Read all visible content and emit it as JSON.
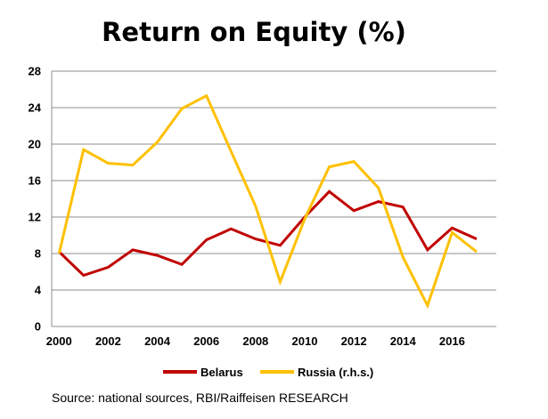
{
  "chart_data": {
    "type": "line",
    "title": "Return on Equity (%)",
    "x": [
      2000,
      2001,
      2002,
      2003,
      2004,
      2005,
      2006,
      2007,
      2008,
      2009,
      2010,
      2011,
      2012,
      2013,
      2014,
      2015,
      2016,
      2017
    ],
    "xticks": [
      "2000",
      "2002",
      "2004",
      "2006",
      "2008",
      "2010",
      "2012",
      "2014",
      "2016"
    ],
    "yticks": [
      "0",
      "4",
      "8",
      "12",
      "16",
      "20",
      "24",
      "28"
    ],
    "ylim": [
      0,
      28
    ],
    "grid": true,
    "legend_position": "bottom",
    "series": [
      {
        "name": "Belarus",
        "color": "#c00000",
        "values": [
          8.2,
          5.6,
          6.5,
          8.4,
          7.8,
          6.8,
          9.5,
          10.7,
          9.6,
          8.9,
          12.0,
          14.8,
          12.7,
          13.7,
          13.1,
          8.4,
          10.8,
          9.6
        ]
      },
      {
        "name": "Russia (r.h.s.)",
        "color": "#ffc000",
        "values": [
          8.0,
          19.4,
          17.9,
          17.7,
          20.2,
          23.9,
          25.3,
          19.2,
          13.2,
          4.9,
          11.8,
          17.5,
          18.1,
          15.2,
          7.6,
          2.3,
          10.3,
          8.2
        ]
      }
    ]
  },
  "source_note": "Source: national sources, RBI/Raiffeisen RESEARCH"
}
